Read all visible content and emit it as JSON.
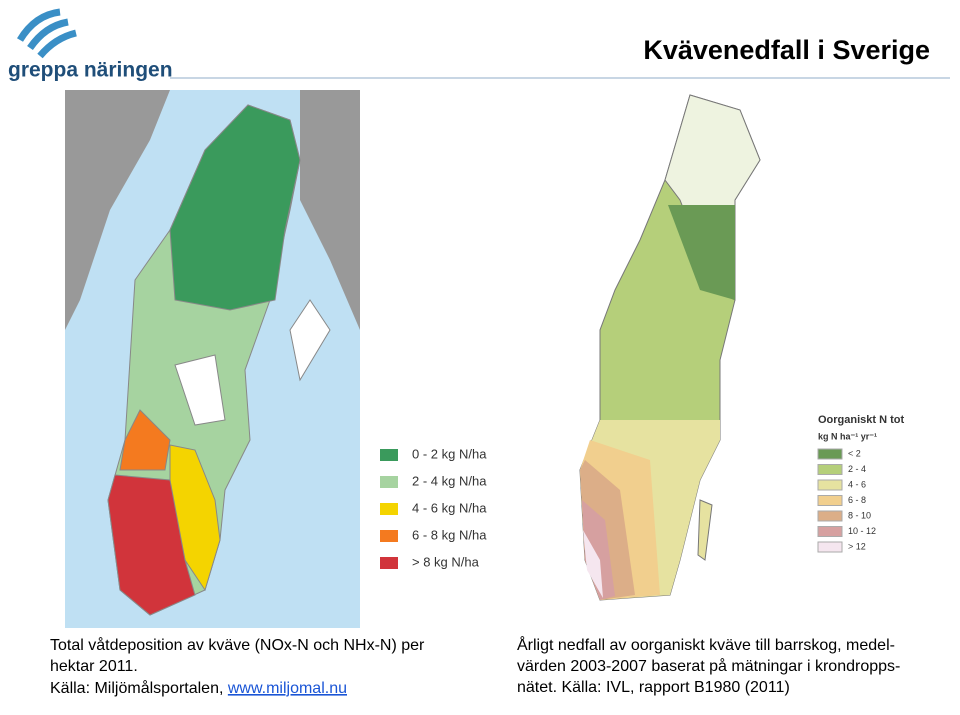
{
  "logo": {
    "text": "greppa näringen"
  },
  "title": "Kvävenedfall i Sverige",
  "left_map": {
    "legend": [
      {
        "label": "0 - 2 kg N/ha",
        "color": "#3a9a5c"
      },
      {
        "label": "2 - 4 kg N/ha",
        "color": "#a6d3a0"
      },
      {
        "label": "4 - 6 kg N/ha",
        "color": "#f4d400"
      },
      {
        "label": "6 - 8 kg N/ha",
        "color": "#f47a1f"
      },
      {
        "label": "> 8 kg N/ha",
        "color": "#d1343b"
      }
    ],
    "caption": [
      "Total våtdeposition av kväve (NOx-N och NHx-N) per",
      "hektar 2011."
    ],
    "source": "Källa: Miljömålsportalen, ",
    "link": "www.miljomal.nu"
  },
  "right_map": {
    "legend_title": "Oorganiskt N tot",
    "legend_unit": "kg N ha⁻¹ yr⁻¹",
    "legend": [
      {
        "label": "< 2",
        "color": "#6a9a55"
      },
      {
        "label": "2 - 4",
        "color": "#b5cf7a"
      },
      {
        "label": "4 - 6",
        "color": "#e6e2a0"
      },
      {
        "label": "6 - 8",
        "color": "#f1cf8e"
      },
      {
        "label": "8 - 10",
        "color": "#dcae88"
      },
      {
        "label": "10 - 12",
        "color": "#d6a0a0"
      },
      {
        "label": "> 12",
        "color": "#f5e6ef"
      }
    ],
    "caption": [
      "Årligt nedfall av oorganiskt kväve till barrskog, medel-",
      "värden 2003-2007 baserat på mätningar i krondropps-",
      "nätet. Källa: IVL, rapport B1980 (2011)"
    ]
  }
}
